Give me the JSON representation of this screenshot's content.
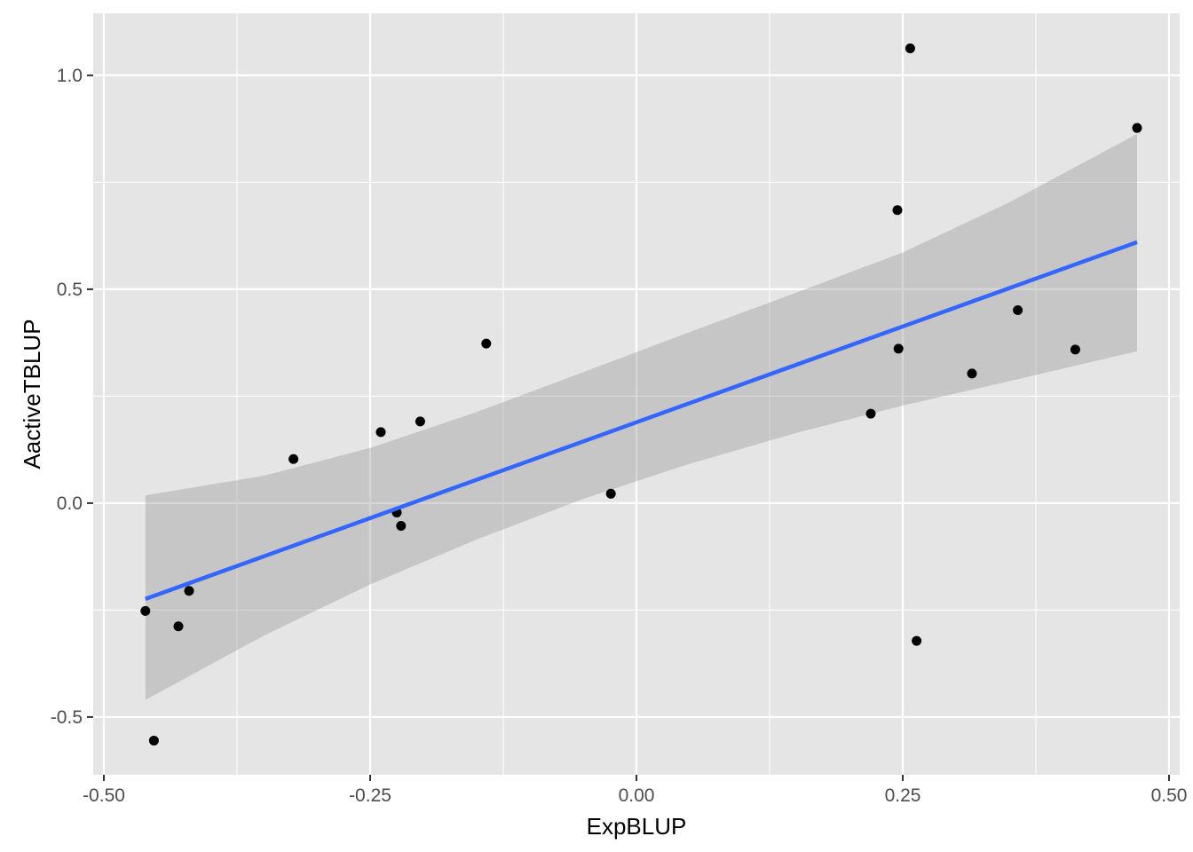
{
  "chart_data": {
    "type": "scatter",
    "title": "",
    "xlabel": "ExpBLUP",
    "ylabel": "AactiveTBLUP",
    "xlim": [
      -0.51,
      0.51
    ],
    "ylim": [
      -0.635,
      1.145
    ],
    "x_ticks": [
      {
        "value": -0.5,
        "label": "-0.50"
      },
      {
        "value": -0.25,
        "label": "-0.25"
      },
      {
        "value": 0.0,
        "label": "0.00"
      },
      {
        "value": 0.25,
        "label": "0.25"
      },
      {
        "value": 0.5,
        "label": "0.50"
      }
    ],
    "y_ticks": [
      {
        "value": -0.5,
        "label": "-0.5"
      },
      {
        "value": 0.0,
        "label": "0.0"
      },
      {
        "value": 0.5,
        "label": "0.5"
      },
      {
        "value": 1.0,
        "label": "1.0"
      }
    ],
    "grid": true,
    "points": [
      {
        "x": -0.461,
        "y": -0.252
      },
      {
        "x": -0.453,
        "y": -0.555
      },
      {
        "x": -0.43,
        "y": -0.288
      },
      {
        "x": -0.42,
        "y": -0.205
      },
      {
        "x": -0.322,
        "y": 0.103
      },
      {
        "x": -0.24,
        "y": 0.166
      },
      {
        "x": -0.225,
        "y": -0.022
      },
      {
        "x": -0.221,
        "y": -0.053
      },
      {
        "x": -0.203,
        "y": 0.191
      },
      {
        "x": -0.141,
        "y": 0.373
      },
      {
        "x": -0.024,
        "y": 0.022
      },
      {
        "x": 0.22,
        "y": 0.209
      },
      {
        "x": 0.245,
        "y": 0.685
      },
      {
        "x": 0.246,
        "y": 0.361
      },
      {
        "x": 0.257,
        "y": 1.063
      },
      {
        "x": 0.263,
        "y": -0.322
      },
      {
        "x": 0.315,
        "y": 0.303
      },
      {
        "x": 0.358,
        "y": 0.451
      },
      {
        "x": 0.412,
        "y": 0.359
      },
      {
        "x": 0.47,
        "y": 0.877
      }
    ],
    "fit": {
      "method": "linear",
      "x": [
        -0.461,
        0.47
      ],
      "y": [
        -0.224,
        0.61
      ],
      "color": "#3366FF"
    },
    "confidence_band": {
      "x": [
        -0.461,
        -0.35,
        -0.25,
        -0.15,
        -0.05,
        0.05,
        0.15,
        0.25,
        0.35,
        0.47
      ],
      "lower": [
        -0.46,
        -0.31,
        -0.19,
        -0.085,
        0.01,
        0.092,
        0.164,
        0.228,
        0.285,
        0.355
      ],
      "upper": [
        0.018,
        0.064,
        0.129,
        0.213,
        0.306,
        0.4,
        0.492,
        0.586,
        0.703,
        0.863
      ],
      "color": "#999999"
    },
    "colors": {
      "panel_background": "#e5e5e5",
      "grid": "#ffffff",
      "point": "#000000",
      "fit_line": "#3366FF",
      "band": "#999999"
    }
  }
}
